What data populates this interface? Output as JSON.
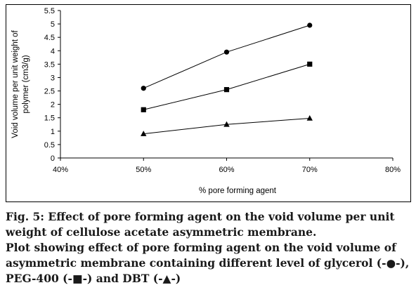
{
  "chart_data": {
    "type": "line",
    "x": [
      "50%",
      "60%",
      "70%"
    ],
    "x_ticks": [
      "40%",
      "50%",
      "60%",
      "70%",
      "80%"
    ],
    "y_ticks": [
      "0",
      "0.5",
      "1",
      "1.5",
      "2",
      "2.5",
      "3",
      "3.5",
      "4",
      "4.5",
      "5",
      "5.5"
    ],
    "xlabel": "% pore forming agent",
    "ylabel_lines": [
      "Void volume per unit weight of",
      "polymer (cm3/g)"
    ],
    "xlim": [
      40,
      80
    ],
    "ylim": [
      0,
      5.5
    ],
    "grid": false,
    "legend": "none",
    "series": [
      {
        "marker": "circle",
        "color": "#000000",
        "x": [
          50,
          60,
          70
        ],
        "values": [
          2.6,
          3.95,
          4.95
        ]
      },
      {
        "marker": "square",
        "color": "#000000",
        "x": [
          50,
          60,
          70
        ],
        "values": [
          1.8,
          2.55,
          3.5
        ]
      },
      {
        "marker": "triangle",
        "color": "#000000",
        "x": [
          50,
          60,
          70
        ],
        "values": [
          0.9,
          1.25,
          1.48
        ]
      }
    ]
  },
  "caption": {
    "line1": "Fig. 5: Effect of pore forming agent on the void volume per unit",
    "line2": "weight of cellulose acetate asymmetric membrane.",
    "line3": "Plot showing effect of pore forming agent on the void volume of",
    "line4": "asymmetric membrane containing different level of glycerol (-●-),",
    "line5": "PEG-400 (-■-) and DBT (-▲-)"
  }
}
